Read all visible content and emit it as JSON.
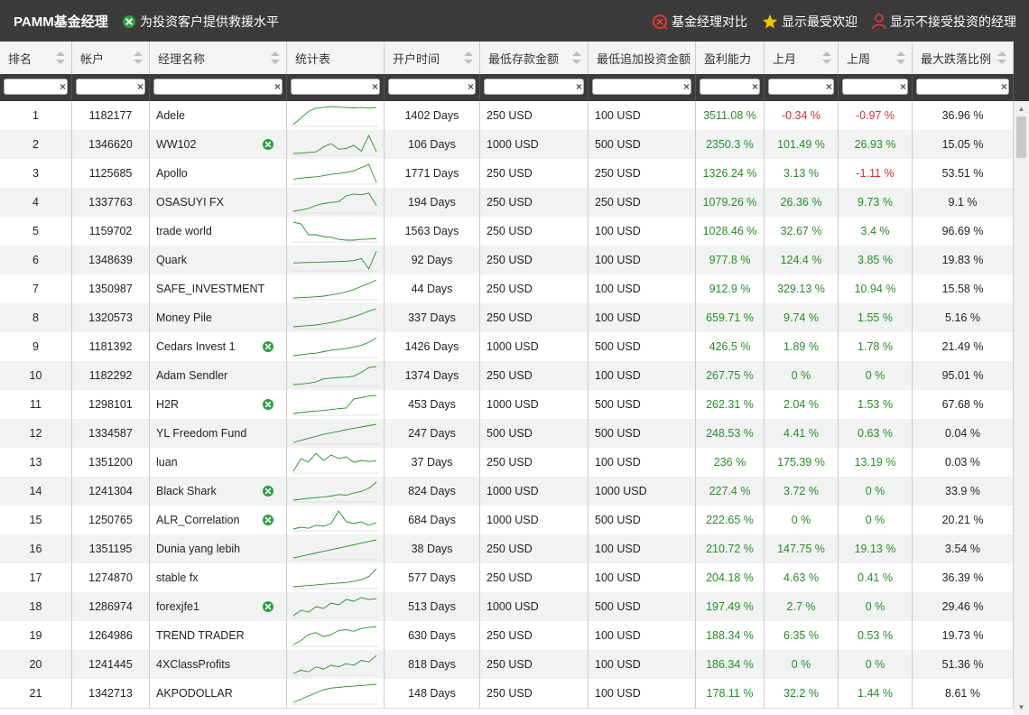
{
  "app": {
    "title": "PAMM基金经理",
    "flag_legend": "为投资客户提供救援水平",
    "actions": [
      {
        "label": "基金经理对比",
        "icon": "compare-icon"
      },
      {
        "label": "显示最受欢迎",
        "icon": "star-icon"
      },
      {
        "label": "显示不接受投资的经理",
        "icon": "user-icon"
      }
    ]
  },
  "colors": {
    "topbar": "#3b3b3b",
    "positive": "#2a8a2a",
    "negative": "#d9302a",
    "flag": "#2e9e44",
    "star": "#f5c400",
    "accent_red": "#e03a3a"
  },
  "columns": [
    {
      "key": "rank",
      "label": "排名"
    },
    {
      "key": "account",
      "label": "帐户"
    },
    {
      "key": "name",
      "label": "经理名称"
    },
    {
      "key": "chart",
      "label": "统计表"
    },
    {
      "key": "days",
      "label": "开户时间"
    },
    {
      "key": "min_deposit",
      "label": "最低存款金额"
    },
    {
      "key": "min_add",
      "label": "最低追加投资金额"
    },
    {
      "key": "profit",
      "label": "盈利能力"
    },
    {
      "key": "last_month",
      "label": "上月"
    },
    {
      "key": "last_week",
      "label": "上周"
    },
    {
      "key": "max_drawdown",
      "label": "最大跌落比例"
    }
  ],
  "filters": {
    "clear_symbol": "×"
  },
  "rows": [
    {
      "rank": "1",
      "account": "1182177",
      "name": "Adele",
      "flag": false,
      "days": "1402 Days",
      "min_deposit": "250 USD",
      "min_add": "100 USD",
      "profit": "3511.08 %",
      "last_month": "-0.34 %",
      "last_week": "-0.97 %",
      "max_drawdown": "36.96 %",
      "spark": [
        10,
        30,
        50,
        60,
        62,
        65,
        63,
        62,
        61,
        62,
        60,
        62
      ]
    },
    {
      "rank": "2",
      "account": "1346620",
      "name": "WW102",
      "flag": true,
      "days": "106 Days",
      "min_deposit": "1000 USD",
      "min_add": "500 USD",
      "profit": "2350.3 %",
      "last_month": "101.49 %",
      "last_week": "26.93 %",
      "max_drawdown": "15.05 %",
      "spark": [
        5,
        6,
        8,
        10,
        25,
        35,
        18,
        20,
        30,
        12,
        60,
        10
      ]
    },
    {
      "rank": "3",
      "account": "1125685",
      "name": "Apollo",
      "flag": false,
      "days": "1771 Days",
      "min_deposit": "250 USD",
      "min_add": "250 USD",
      "profit": "1326.24 %",
      "last_month": "3.13 %",
      "last_week": "-1.11 %",
      "max_drawdown": "53.51 %",
      "spark": [
        5,
        8,
        10,
        12,
        15,
        20,
        22,
        25,
        30,
        40,
        50,
        -5
      ]
    },
    {
      "rank": "4",
      "account": "1337763",
      "name": "OSASUYI FX",
      "flag": false,
      "days": "194 Days",
      "min_deposit": "250 USD",
      "min_add": "250 USD",
      "profit": "1079.26 %",
      "last_month": "26.36 %",
      "last_week": "9.73 %",
      "max_drawdown": "9.1 %",
      "spark": [
        5,
        8,
        12,
        20,
        25,
        28,
        30,
        45,
        50,
        48,
        52,
        20
      ]
    },
    {
      "rank": "5",
      "account": "1159702",
      "name": "trade world",
      "flag": false,
      "days": "1563 Days",
      "min_deposit": "250 USD",
      "min_add": "100 USD",
      "profit": "1028.46 %",
      "last_month": "32.67 %",
      "last_week": "3.4 %",
      "max_drawdown": "96.69 %",
      "spark": [
        60,
        55,
        25,
        25,
        20,
        18,
        12,
        10,
        10,
        12,
        13,
        14
      ]
    },
    {
      "rank": "6",
      "account": "1348639",
      "name": "Quark",
      "flag": false,
      "days": "92 Days",
      "min_deposit": "250 USD",
      "min_add": "100 USD",
      "profit": "977.8 %",
      "last_month": "124.4 %",
      "last_week": "3.85 %",
      "max_drawdown": "19.83 %",
      "spark": [
        20,
        21,
        22,
        22,
        23,
        24,
        25,
        26,
        28,
        35,
        0,
        60
      ]
    },
    {
      "rank": "7",
      "account": "1350987",
      "name": "SAFE_INVESTMENT",
      "flag": false,
      "days": "44 Days",
      "min_deposit": "250 USD",
      "min_add": "100 USD",
      "profit": "912.9 %",
      "last_month": "329.13 %",
      "last_week": "10.94 %",
      "max_drawdown": "15.58 %",
      "spark": [
        2,
        3,
        4,
        6,
        8,
        12,
        16,
        22,
        30,
        40,
        50,
        62
      ]
    },
    {
      "rank": "8",
      "account": "1320573",
      "name": "Money Pile",
      "flag": false,
      "days": "337 Days",
      "min_deposit": "250 USD",
      "min_add": "100 USD",
      "profit": "659.71 %",
      "last_month": "9.74 %",
      "last_week": "1.55 %",
      "max_drawdown": "5.16 %",
      "spark": [
        2,
        4,
        6,
        8,
        12,
        16,
        22,
        28,
        36,
        44,
        54,
        62
      ]
    },
    {
      "rank": "9",
      "account": "1181392",
      "name": "Cedars Invest 1",
      "flag": true,
      "days": "1426 Days",
      "min_deposit": "1000 USD",
      "min_add": "500 USD",
      "profit": "426.5 %",
      "last_month": "1.89 %",
      "last_week": "1.78 %",
      "max_drawdown": "21.49 %",
      "spark": [
        2,
        5,
        8,
        10,
        15,
        20,
        22,
        25,
        30,
        35,
        45,
        60
      ]
    },
    {
      "rank": "10",
      "account": "1182292",
      "name": "Adam Sendler",
      "flag": false,
      "days": "1374 Days",
      "min_deposit": "250 USD",
      "min_add": "100 USD",
      "profit": "267.75 %",
      "last_month": "0 %",
      "last_week": "0 %",
      "max_drawdown": "95.01 %",
      "spark": [
        2,
        4,
        6,
        10,
        20,
        22,
        24,
        25,
        28,
        40,
        55,
        58
      ]
    },
    {
      "rank": "11",
      "account": "1298101",
      "name": "H2R",
      "flag": true,
      "days": "453 Days",
      "min_deposit": "1000 USD",
      "min_add": "500 USD",
      "profit": "262.31 %",
      "last_month": "2.04 %",
      "last_week": "1.53 %",
      "max_drawdown": "67.68 %",
      "spark": [
        2,
        5,
        8,
        10,
        12,
        15,
        18,
        20,
        50,
        55,
        60,
        62
      ]
    },
    {
      "rank": "12",
      "account": "1334587",
      "name": "YL Freedom Fund",
      "flag": false,
      "days": "247 Days",
      "min_deposit": "500 USD",
      "min_add": "500 USD",
      "profit": "248.53 %",
      "last_month": "4.41 %",
      "last_week": "0.63 %",
      "max_drawdown": "0.04 %",
      "spark": [
        2,
        8,
        14,
        20,
        26,
        30,
        35,
        40,
        44,
        48,
        52,
        56
      ]
    },
    {
      "rank": "13",
      "account": "1351200",
      "name": "luan",
      "flag": false,
      "days": "37 Days",
      "min_deposit": "250 USD",
      "min_add": "100 USD",
      "profit": "236 %",
      "last_month": "175.39 %",
      "last_week": "13.19 %",
      "max_drawdown": "0.03 %",
      "spark": [
        5,
        40,
        30,
        55,
        35,
        50,
        40,
        45,
        30,
        35,
        32,
        34
      ]
    },
    {
      "rank": "14",
      "account": "1241304",
      "name": "Black Shark",
      "flag": true,
      "days": "824 Days",
      "min_deposit": "1000 USD",
      "min_add": "1000 USD",
      "profit": "227.4 %",
      "last_month": "3.72 %",
      "last_week": "0 %",
      "max_drawdown": "33.9 %",
      "spark": [
        2,
        5,
        8,
        10,
        12,
        15,
        20,
        18,
        25,
        30,
        40,
        60
      ]
    },
    {
      "rank": "15",
      "account": "1250765",
      "name": "ALR_Correlation",
      "flag": true,
      "days": "684 Days",
      "min_deposit": "1000 USD",
      "min_add": "500 USD",
      "profit": "222.65 %",
      "last_month": "0 %",
      "last_week": "0 %",
      "max_drawdown": "20.21 %",
      "spark": [
        10,
        15,
        12,
        20,
        18,
        25,
        60,
        30,
        25,
        30,
        20,
        28
      ]
    },
    {
      "rank": "16",
      "account": "1351195",
      "name": "Dunia yang lebih",
      "flag": false,
      "days": "38 Days",
      "min_deposit": "250 USD",
      "min_add": "100 USD",
      "profit": "210.72 %",
      "last_month": "147.75 %",
      "last_week": "19.13 %",
      "max_drawdown": "3.54 %",
      "spark": [
        2,
        7,
        12,
        17,
        22,
        27,
        32,
        37,
        42,
        47,
        52,
        57
      ]
    },
    {
      "rank": "17",
      "account": "1274870",
      "name": "stable fx",
      "flag": false,
      "days": "577 Days",
      "min_deposit": "250 USD",
      "min_add": "100 USD",
      "profit": "204.18 %",
      "last_month": "4.63 %",
      "last_week": "0.41 %",
      "max_drawdown": "36.39 %",
      "spark": [
        2,
        4,
        6,
        8,
        10,
        12,
        14,
        16,
        20,
        25,
        35,
        60
      ]
    },
    {
      "rank": "18",
      "account": "1286974",
      "name": "forexjfe1",
      "flag": true,
      "days": "513 Days",
      "min_deposit": "1000 USD",
      "min_add": "500 USD",
      "profit": "197.49 %",
      "last_month": "2.7 %",
      "last_week": "0 %",
      "max_drawdown": "29.46 %",
      "spark": [
        5,
        20,
        15,
        30,
        25,
        40,
        35,
        50,
        45,
        55,
        50,
        52
      ]
    },
    {
      "rank": "19",
      "account": "1264986",
      "name": "TREND TRADER",
      "flag": false,
      "days": "630 Days",
      "min_deposit": "250 USD",
      "min_add": "100 USD",
      "profit": "188.34 %",
      "last_month": "6.35 %",
      "last_week": "0.53 %",
      "max_drawdown": "19.73 %",
      "spark": [
        5,
        15,
        30,
        35,
        25,
        30,
        40,
        42,
        38,
        45,
        48,
        50
      ]
    },
    {
      "rank": "20",
      "account": "1241445",
      "name": "4XClassProfits",
      "flag": false,
      "days": "818 Days",
      "min_deposit": "250 USD",
      "min_add": "100 USD",
      "profit": "186.34 %",
      "last_month": "0 %",
      "last_week": "0 %",
      "max_drawdown": "51.36 %",
      "spark": [
        5,
        15,
        10,
        25,
        18,
        30,
        25,
        35,
        30,
        45,
        40,
        60
      ]
    },
    {
      "rank": "21",
      "account": "1342713",
      "name": "AKPODOLLAR",
      "flag": false,
      "days": "148 Days",
      "min_deposit": "250 USD",
      "min_add": "100 USD",
      "profit": "178.11 %",
      "last_month": "32.2 %",
      "last_week": "1.44 %",
      "max_drawdown": "8.61 %",
      "spark": [
        5,
        15,
        25,
        35,
        45,
        50,
        52,
        55,
        56,
        58,
        60,
        62
      ]
    }
  ]
}
